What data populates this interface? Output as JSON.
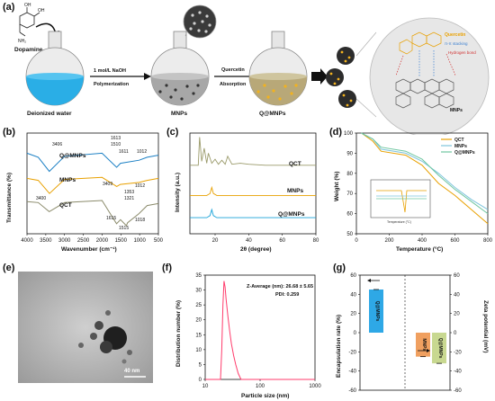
{
  "panels": {
    "a": {
      "label": "(a)",
      "dopamine": "Dopamine",
      "water": "Deionized water",
      "step1_top": "1 mol/L NaOH",
      "step1_bottom": "Polymerization",
      "mnps": "MNPs",
      "step2_top": "Quercetin",
      "step2_bottom": "Absorption",
      "qmnps": "Q@MNPs",
      "quercetin": "Quercetin",
      "pi_stacking": "π-π stacking",
      "hbond": "Hydrogen bond",
      "mnps_small": "MNPs"
    },
    "b": {
      "label": "(b)",
      "ylabel": "Transmittance (%)",
      "xlabel": "Wavenumber (cm⁻¹)",
      "xticks": [
        "4000",
        "3500",
        "3000",
        "2500",
        "2000",
        "1500",
        "1000",
        "500"
      ],
      "series": [
        "Q@MNPs",
        "MNPs",
        "QCT"
      ],
      "peaks": [
        "3406",
        "3400",
        "1613",
        "1510",
        "3409",
        "1611",
        "1515",
        "1615",
        "1353",
        "1321",
        "1012",
        "1012",
        "1018"
      ]
    },
    "c": {
      "label": "(c)",
      "ylabel": "Intensity (a.u.)",
      "xlabel": "2θ (degree)",
      "xticks": [
        "20",
        "40",
        "60",
        "80"
      ],
      "series": [
        "QCT",
        "MNPs",
        "Q@MNPs"
      ]
    },
    "d": {
      "label": "(d)",
      "ylabel": "Weight (%)",
      "xlabel": "Temperature (°C)",
      "xticks": [
        "0",
        "200",
        "400",
        "600",
        "800"
      ],
      "yticks": [
        "100",
        "90",
        "80",
        "70",
        "60",
        "50"
      ],
      "legend": [
        "QCT",
        "MNPs",
        "Q@MNPs"
      ],
      "inset_xlabel": "Temperature (°C)"
    },
    "e": {
      "label": "(e)",
      "scale_bar": "40 nm"
    },
    "f": {
      "label": "(f)",
      "ylabel": "Distribution number (%)",
      "xlabel": "Particle size (nm)",
      "xticks": [
        "10",
        "100",
        "1000"
      ],
      "yticks": [
        "0",
        "5",
        "10",
        "15",
        "20",
        "25",
        "30",
        "35"
      ],
      "zavg": "Z-Average (nm): 26.68 ± 5.65",
      "pdi": "PDI: 0.259"
    },
    "g": {
      "label": "(g)",
      "ylabel_left": "Encapsulation rate (%)",
      "ylabel_right": "Zeta potential (mV)",
      "yticks": [
        "60",
        "40",
        "20",
        "0",
        "-20",
        "-40",
        "-60"
      ],
      "bars": [
        "Q@MNPs",
        "MNPs",
        "Q@MNPs"
      ]
    }
  },
  "chart_data": [
    {
      "type": "line",
      "title": "",
      "xlabel": "Wavenumber (cm⁻¹)",
      "ylabel": "Transmittance (%)",
      "xlim": [
        4000,
        500
      ],
      "series": [
        {
          "name": "Q@MNPs",
          "x": [
            4000,
            3700,
            3406,
            3000,
            2000,
            1613,
            1510,
            1012,
            800,
            500
          ],
          "y": [
            0.8,
            0.76,
            0.62,
            0.77,
            0.8,
            0.66,
            0.7,
            0.73,
            0.76,
            0.78
          ]
        },
        {
          "name": "MNPs",
          "x": [
            4000,
            3700,
            3400,
            3000,
            2000,
            1611,
            1515,
            1012,
            800,
            500
          ],
          "y": [
            0.55,
            0.53,
            0.4,
            0.54,
            0.56,
            0.47,
            0.49,
            0.51,
            0.53,
            0.55
          ]
        },
        {
          "name": "QCT",
          "x": [
            4000,
            3700,
            3409,
            3000,
            2000,
            1615,
            1510,
            1353,
            1321,
            1018,
            800,
            500
          ],
          "y": [
            0.32,
            0.31,
            0.22,
            0.31,
            0.33,
            0.1,
            0.14,
            0.08,
            0.11,
            0.2,
            0.28,
            0.3
          ]
        }
      ]
    },
    {
      "type": "line",
      "title": "",
      "xlabel": "2θ (degree)",
      "ylabel": "Intensity (a.u.)",
      "xlim": [
        5,
        80
      ],
      "series": [
        {
          "name": "QCT",
          "x": [
            5,
            10,
            10.8,
            12,
            13.5,
            15,
            16,
            18,
            20,
            22,
            24,
            26,
            27.5,
            30,
            35,
            40,
            50,
            60,
            80
          ],
          "y": [
            0.68,
            0.68,
            0.96,
            0.72,
            0.85,
            0.7,
            0.8,
            0.7,
            0.74,
            0.69,
            0.73,
            0.69,
            0.77,
            0.69,
            0.7,
            0.69,
            0.68,
            0.68,
            0.68
          ]
        },
        {
          "name": "MNPs",
          "x": [
            5,
            15,
            17,
            18,
            19,
            21,
            40,
            60,
            80
          ],
          "y": [
            0.38,
            0.38,
            0.4,
            0.46,
            0.4,
            0.38,
            0.38,
            0.38,
            0.38
          ]
        },
        {
          "name": "Q@MNPs",
          "x": [
            5,
            15,
            17,
            18,
            19,
            21,
            40,
            60,
            80
          ],
          "y": [
            0.16,
            0.16,
            0.18,
            0.24,
            0.18,
            0.16,
            0.16,
            0.16,
            0.16
          ]
        }
      ]
    },
    {
      "type": "line",
      "title": "",
      "xlabel": "Temperature (°C)",
      "ylabel": "Weight (%)",
      "xlim": [
        0,
        800
      ],
      "ylim": [
        50,
        100
      ],
      "series": [
        {
          "name": "QCT",
          "x": [
            30,
            100,
            150,
            300,
            400,
            500,
            600,
            700,
            800
          ],
          "y": [
            100,
            96,
            91,
            89,
            84,
            75,
            69,
            62,
            55
          ]
        },
        {
          "name": "MNPs",
          "x": [
            30,
            100,
            150,
            300,
            400,
            500,
            600,
            700,
            800
          ],
          "y": [
            100,
            97,
            92,
            90,
            86,
            80,
            73,
            67,
            62
          ]
        },
        {
          "name": "Q@MNPs",
          "x": [
            30,
            100,
            150,
            300,
            400,
            500,
            600,
            700,
            800
          ],
          "y": [
            100,
            97,
            93,
            91,
            87,
            79,
            72,
            66,
            60
          ]
        }
      ]
    },
    {
      "type": "line",
      "title": "",
      "xlabel": "Particle size (nm)",
      "ylabel": "Distribution number (%)",
      "x_scale": "log",
      "xlim": [
        10,
        1000
      ],
      "ylim": [
        0,
        35
      ],
      "series": [
        {
          "name": "",
          "x": [
            10,
            18,
            19,
            20,
            21,
            22,
            23,
            24,
            26,
            28,
            30,
            33,
            36,
            40,
            45,
            1000
          ],
          "y": [
            0,
            0,
            0,
            10,
            25,
            33,
            31,
            27,
            21,
            16,
            12,
            8,
            5,
            2,
            0,
            0
          ]
        }
      ]
    },
    {
      "type": "bar",
      "title": "",
      "categories": [
        "Q@MNPs",
        "MNPs",
        "Q@MNPs"
      ],
      "series": [
        {
          "name": "Encapsulation rate (%)",
          "values": [
            45,
            null,
            null
          ]
        },
        {
          "name": "Zeta potential (mV)",
          "values": [
            null,
            -25,
            -32
          ]
        }
      ],
      "ylim": [
        -60,
        60
      ],
      "colors": [
        "#2ea8e6",
        "#f0a060",
        "#c8d890"
      ]
    }
  ]
}
